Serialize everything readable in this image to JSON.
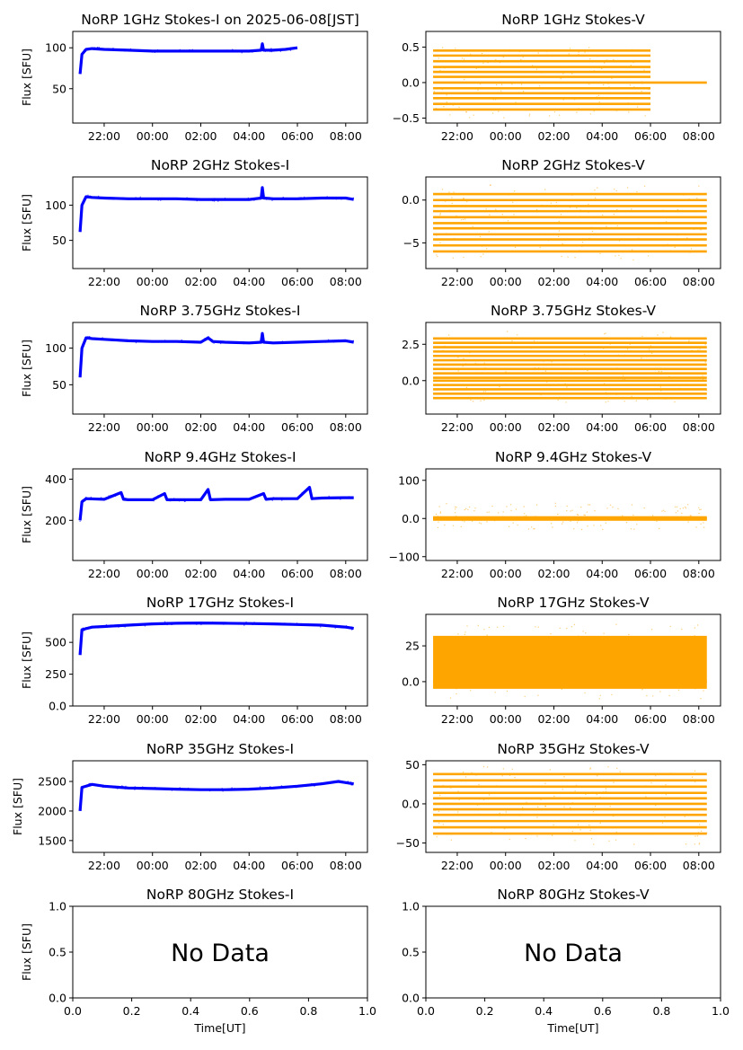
{
  "figure": {
    "xlabel": "Time[UT]"
  },
  "time_ticks": [
    "22:00",
    "00:00",
    "02:00",
    "04:00",
    "06:00",
    "08:00"
  ],
  "colors": {
    "stokes_i": "#0000ff",
    "stokes_v": "#ffa500"
  },
  "chart_data": [
    {
      "type": "line",
      "title": "NoRP 1GHz Stokes-I on 2025-06-08[JST]",
      "ylabel": "Flux [SFU]",
      "xlabel": "",
      "x_range": [
        "21:00",
        "08:20"
      ],
      "ylim": [
        8,
        120
      ],
      "yticks": [
        50,
        100
      ],
      "series": [
        {
          "values": [
            [
              21.0,
              68
            ],
            [
              21.08,
              92
            ],
            [
              21.25,
              98
            ],
            [
              21.5,
              99
            ],
            [
              22,
              98
            ],
            [
              23,
              97
            ],
            [
              0,
              96
            ],
            [
              1,
              96
            ],
            [
              2,
              96
            ],
            [
              3,
              96
            ],
            [
              4,
              96
            ],
            [
              4.5,
              97
            ],
            [
              4.55,
              105
            ],
            [
              4.6,
              97
            ],
            [
              5,
              97
            ],
            [
              5.5,
              98
            ],
            [
              6,
              100
            ]
          ]
        }
      ]
    },
    {
      "type": "scatter",
      "title": "NoRP 1GHz Stokes-V",
      "ylabel": "",
      "xlabel": "",
      "x_range": [
        "21:00",
        "08:20"
      ],
      "ylim": [
        -0.57,
        0.72
      ],
      "yticks": [
        -0.5,
        0.0,
        0.5
      ],
      "series": [
        {
          "levels": [
            0.45,
            0.38,
            0.3,
            0.22,
            0.15,
            0.08,
            0.0,
            -0.08,
            -0.15,
            -0.22,
            -0.3,
            -0.38
          ],
          "x_end": "06:00",
          "after_x_end_value": 0.0,
          "scatter_range": [
            -0.5,
            0.5
          ]
        }
      ]
    },
    {
      "type": "line",
      "title": "NoRP 2GHz Stokes-I",
      "ylabel": "Flux [SFU]",
      "xlabel": "",
      "x_range": [
        "21:00",
        "08:20"
      ],
      "ylim": [
        10,
        140
      ],
      "yticks": [
        50,
        100
      ],
      "series": [
        {
          "values": [
            [
              21.0,
              62
            ],
            [
              21.08,
              100
            ],
            [
              21.25,
              112
            ],
            [
              21.5,
              111
            ],
            [
              22,
              110
            ],
            [
              23,
              109
            ],
            [
              0,
              109
            ],
            [
              1,
              109
            ],
            [
              2,
              108
            ],
            [
              3,
              108
            ],
            [
              4,
              108
            ],
            [
              4.5,
              110
            ],
            [
              4.55,
              125
            ],
            [
              4.6,
              110
            ],
            [
              5,
              109
            ],
            [
              6,
              109
            ],
            [
              7,
              110
            ],
            [
              8,
              110
            ],
            [
              8.33,
              108
            ]
          ]
        }
      ]
    },
    {
      "type": "scatter",
      "title": "NoRP 2GHz Stokes-V",
      "ylabel": "",
      "xlabel": "",
      "x_range": [
        "21:00",
        "08:20"
      ],
      "ylim": [
        -8.0,
        2.7
      ],
      "yticks": [
        -5,
        0
      ],
      "series": [
        {
          "levels": [
            0.7,
            0.0,
            -0.7,
            -1.3,
            -2.0,
            -2.7,
            -3.3,
            -4.0,
            -4.6,
            -5.3,
            -6.0
          ],
          "x_end": "08:20",
          "scatter_range": [
            -7.0,
            2.0
          ]
        }
      ]
    },
    {
      "type": "line",
      "title": "NoRP 3.75GHz Stokes-I",
      "ylabel": "Flux [SFU]",
      "xlabel": "",
      "x_range": [
        "21:00",
        "08:20"
      ],
      "ylim": [
        10,
        135
      ],
      "yticks": [
        50,
        100
      ],
      "series": [
        {
          "values": [
            [
              21.0,
              60
            ],
            [
              21.08,
              100
            ],
            [
              21.25,
              114
            ],
            [
              21.5,
              113
            ],
            [
              22,
              112
            ],
            [
              23,
              110
            ],
            [
              0,
              109
            ],
            [
              1,
              109
            ],
            [
              2,
              108
            ],
            [
              2.3,
              114
            ],
            [
              2.5,
              109
            ],
            [
              3,
              108
            ],
            [
              4,
              107
            ],
            [
              4.5,
              108
            ],
            [
              4.55,
              120
            ],
            [
              4.6,
              108
            ],
            [
              5,
              107
            ],
            [
              6,
              108
            ],
            [
              7,
              109
            ],
            [
              8,
              110
            ],
            [
              8.33,
              108
            ]
          ]
        }
      ]
    },
    {
      "type": "scatter",
      "title": "NoRP 3.75GHz Stokes-V",
      "ylabel": "",
      "xlabel": "",
      "x_range": [
        "21:00",
        "08:20"
      ],
      "ylim": [
        -2.3,
        4.0
      ],
      "yticks": [
        0.0,
        2.5
      ],
      "series": [
        {
          "levels": [
            2.9,
            2.6,
            2.3,
            2.0,
            1.7,
            1.4,
            1.1,
            0.8,
            0.5,
            0.2,
            0.0,
            -0.3,
            -0.6,
            -0.9,
            -1.2
          ],
          "x_end": "08:20",
          "scatter_range": [
            -1.5,
            3.4
          ]
        }
      ]
    },
    {
      "type": "line",
      "title": "NoRP 9.4GHz Stokes-I",
      "ylabel": "Flux [SFU]",
      "xlabel": "",
      "x_range": [
        "21:00",
        "08:20"
      ],
      "ylim": [
        5,
        450
      ],
      "yticks": [
        200,
        400
      ],
      "series": [
        {
          "values": [
            [
              21.0,
              200
            ],
            [
              21.08,
              290
            ],
            [
              21.25,
              305
            ],
            [
              22,
              302
            ],
            [
              22.7,
              335
            ],
            [
              22.8,
              302
            ],
            [
              23,
              300
            ],
            [
              0,
              300
            ],
            [
              0.5,
              330
            ],
            [
              0.6,
              300
            ],
            [
              1,
              300
            ],
            [
              2,
              300
            ],
            [
              2.3,
              350
            ],
            [
              2.4,
              300
            ],
            [
              3,
              302
            ],
            [
              4,
              302
            ],
            [
              4.6,
              330
            ],
            [
              4.7,
              302
            ],
            [
              5,
              305
            ],
            [
              6,
              305
            ],
            [
              6.5,
              360
            ],
            [
              6.6,
              305
            ],
            [
              7,
              308
            ],
            [
              8,
              310
            ],
            [
              8.33,
              310
            ]
          ]
        }
      ]
    },
    {
      "type": "scatter",
      "title": "NoRP 9.4GHz Stokes-V",
      "ylabel": "",
      "xlabel": "",
      "x_range": [
        "21:00",
        "08:20"
      ],
      "ylim": [
        -110,
        130
      ],
      "yticks": [
        -100,
        0,
        100
      ],
      "series": [
        {
          "levels": [
            0
          ],
          "band": [
            -6,
            6
          ],
          "x_end": "08:20",
          "scatter_range": [
            -30,
            40
          ]
        }
      ]
    },
    {
      "type": "line",
      "title": "NoRP 17GHz Stokes-I",
      "ylabel": "Flux [SFU]",
      "xlabel": "",
      "x_range": [
        "21:00",
        "08:20"
      ],
      "ylim": [
        0,
        720
      ],
      "yticks": [
        0,
        250,
        500
      ],
      "series": [
        {
          "values": [
            [
              21.0,
              400
            ],
            [
              21.08,
              600
            ],
            [
              21.5,
              620
            ],
            [
              22,
              625
            ],
            [
              23,
              635
            ],
            [
              0,
              645
            ],
            [
              1,
              650
            ],
            [
              2,
              652
            ],
            [
              3,
              650
            ],
            [
              4,
              648
            ],
            [
              5,
              645
            ],
            [
              6,
              640
            ],
            [
              7,
              635
            ],
            [
              8,
              620
            ],
            [
              8.33,
              610
            ]
          ]
        }
      ]
    },
    {
      "type": "scatter",
      "title": "NoRP 17GHz Stokes-V",
      "ylabel": "",
      "xlabel": "",
      "x_range": [
        "21:00",
        "08:20"
      ],
      "ylim": [
        -17,
        47
      ],
      "yticks": [
        0,
        25
      ],
      "series": [
        {
          "levels": [
            0
          ],
          "band": [
            -5,
            32
          ],
          "x_end": "08:20",
          "scatter_range": [
            -12,
            40
          ]
        }
      ]
    },
    {
      "type": "line",
      "title": "NoRP 35GHz Stokes-I",
      "ylabel": "Flux [SFU]",
      "xlabel": "",
      "x_range": [
        "21:00",
        "08:20"
      ],
      "ylim": [
        1300,
        2850
      ],
      "yticks": [
        1500,
        2000,
        2500
      ],
      "series": [
        {
          "values": [
            [
              21.0,
              2000
            ],
            [
              21.08,
              2400
            ],
            [
              21.5,
              2450
            ],
            [
              22,
              2420
            ],
            [
              23,
              2390
            ],
            [
              0,
              2380
            ],
            [
              1,
              2370
            ],
            [
              2,
              2360
            ],
            [
              3,
              2360
            ],
            [
              4,
              2370
            ],
            [
              5,
              2390
            ],
            [
              6,
              2420
            ],
            [
              7,
              2460
            ],
            [
              7.7,
              2500
            ],
            [
              8,
              2480
            ],
            [
              8.33,
              2460
            ]
          ]
        }
      ]
    },
    {
      "type": "scatter",
      "title": "NoRP 35GHz Stokes-V",
      "ylabel": "",
      "xlabel": "",
      "x_range": [
        "21:00",
        "08:20"
      ],
      "ylim": [
        -62,
        55
      ],
      "yticks": [
        -50,
        0,
        50
      ],
      "series": [
        {
          "levels": [
            38,
            30,
            22,
            14,
            7,
            0,
            -7,
            -14,
            -22,
            -30,
            -38
          ],
          "x_end": "08:20",
          "scatter_range": [
            -52,
            48
          ]
        }
      ]
    },
    {
      "type": "table",
      "title": "NoRP 80GHz Stokes-I",
      "ylabel": "Flux [SFU]",
      "xlabel": "Time[UT]",
      "xlim": [
        0.0,
        1.0
      ],
      "ylim": [
        0.0,
        1.0
      ],
      "xticks": [
        "0.0",
        "0.2",
        "0.4",
        "0.6",
        "0.8",
        "1.0"
      ],
      "yticks": [
        "0.0",
        "0.5",
        "1.0"
      ],
      "annotation": "No Data",
      "series": []
    },
    {
      "type": "table",
      "title": "NoRP 80GHz Stokes-V",
      "ylabel": "",
      "xlabel": "Time[UT]",
      "xlim": [
        0.0,
        1.0
      ],
      "ylim": [
        0.0,
        1.0
      ],
      "xticks": [
        "0.0",
        "0.2",
        "0.4",
        "0.6",
        "0.8",
        "1.0"
      ],
      "yticks": [
        "0.0",
        "0.5",
        "1.0"
      ],
      "annotation": "No Data",
      "series": []
    }
  ]
}
